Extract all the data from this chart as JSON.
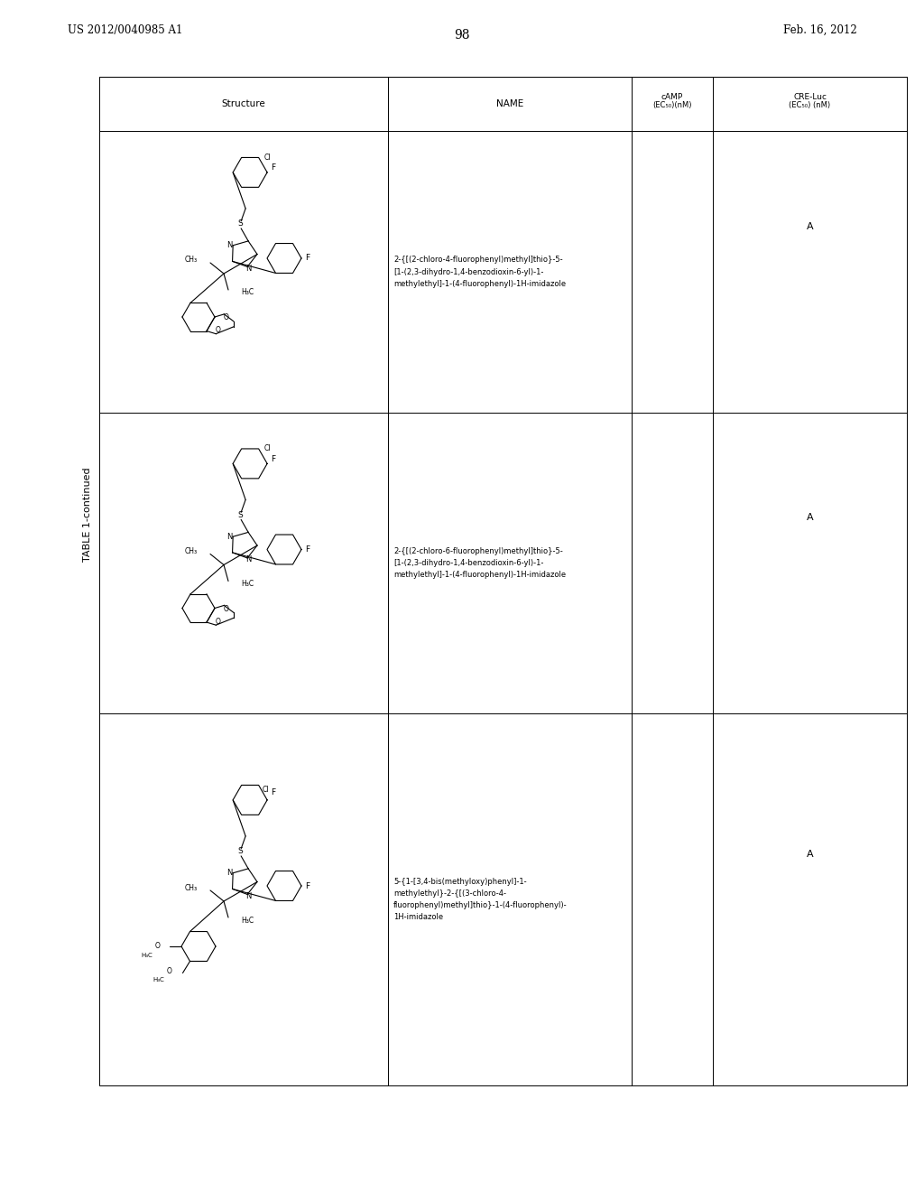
{
  "page_left_text": "US 2012/0040985 A1",
  "page_right_text": "Feb. 16, 2012",
  "page_number": "98",
  "table_title": "TABLE 1-continued",
  "background_color": "#ffffff",
  "text_color": "#000000",
  "header_row": {
    "col1": "Structure",
    "col2": "NAME",
    "col3": "cAMP\n(EC50)(nM)",
    "col4": "CRE-Luc\n(EC50)(nM)"
  },
  "rows": [
    {
      "name": "2-{[(2-chloro-4-fluorophenyl)methyl]thio}-5-\n[1-(2,3-dihydro-1,4-benzodioxin-6-yl)-1-\nmethylethyl]-1-(4-fluorophenyl)-1H-imidazole",
      "camp": "",
      "cre": "A"
    },
    {
      "name": "2-{[(2-chloro-6-fluorophenyl)methyl]thio}-5-\n[1-(2,3-dihydro-1,4-benzodioxin-6-yl)-1-\nmethylethyl]-1-(4-fluorophenyl)-1H-imidazole",
      "camp": "",
      "cre": "A"
    },
    {
      "name": "5-{1-[3,4-bis(methyloxy)phenyl]-1-\nmethylethyl}-2-{[(3-chloro-4-\nfluorophenyl)methyl]thio}-1-(4-fluorophenyl)-\n1H-imidazole",
      "camp": "",
      "cre": "A"
    }
  ]
}
